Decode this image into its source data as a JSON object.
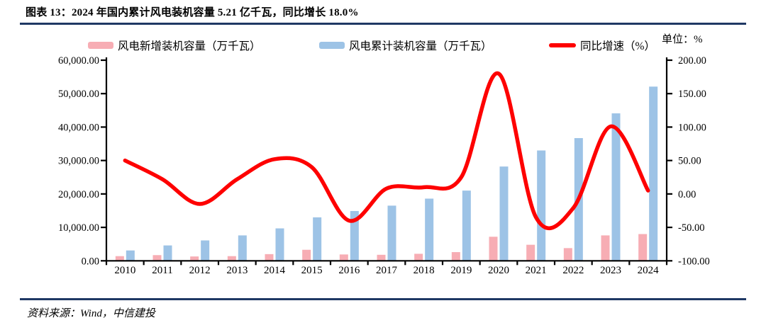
{
  "page": {
    "title": "图表 13：2024 年国内累计风电装机容量 5.21 亿千瓦，同比增长 18.0%",
    "unit_label": "单位：%",
    "source": "资料来源：Wind，中信建投"
  },
  "colors": {
    "new_bar": "#F7ADB4",
    "cumulative_bar": "#9DC3E6",
    "growth_line": "#FE0000",
    "divider": "#1F3864",
    "axis": "#000000",
    "text": "#000000"
  },
  "chart_data": {
    "type": "combo",
    "title": "2024 年国内累计风电装机容量 5.21 亿千瓦，同比增长 18.0%",
    "categories": [
      "2010",
      "2011",
      "2012",
      "2013",
      "2014",
      "2015",
      "2016",
      "2017",
      "2018",
      "2019",
      "2020",
      "2021",
      "2022",
      "2023",
      "2024"
    ],
    "series": [
      {
        "name": "风电新增装机容量（万千瓦）",
        "type": "bar",
        "axis": "left",
        "color": "#F7ADB4",
        "values": [
          1400,
          1700,
          1300,
          1400,
          2000,
          3300,
          1900,
          1800,
          2100,
          2600,
          7200,
          4800,
          3800,
          7600,
          8000
        ]
      },
      {
        "name": "风电累计装机容量（万千瓦）",
        "type": "bar",
        "axis": "left",
        "color": "#9DC3E6",
        "values": [
          3100,
          4600,
          6100,
          7600,
          9700,
          13000,
          14900,
          16500,
          18600,
          21000,
          28200,
          33000,
          36700,
          44100,
          52100
        ]
      },
      {
        "name": "同比增速（%）",
        "type": "line",
        "axis": "right",
        "color": "#FE0000",
        "values": [
          50,
          22,
          -15,
          22,
          52,
          40,
          -40,
          8,
          10,
          25,
          180,
          -35,
          -21,
          101,
          5
        ]
      }
    ],
    "left_axis": {
      "min": 0,
      "max": 60000,
      "step": 10000,
      "tick_labels": [
        "60,000.00",
        "50,000.00",
        "40,000.00",
        "30,000.00",
        "20,000.00",
        "10,000.00",
        "0.00"
      ]
    },
    "right_axis": {
      "min": -100,
      "max": 200,
      "step": 50,
      "tick_labels": [
        "200.00",
        "150.00",
        "100.00",
        "50.00",
        "0.00",
        "-50.00",
        "-100.00"
      ]
    },
    "legend_position": "top",
    "grid": false
  }
}
